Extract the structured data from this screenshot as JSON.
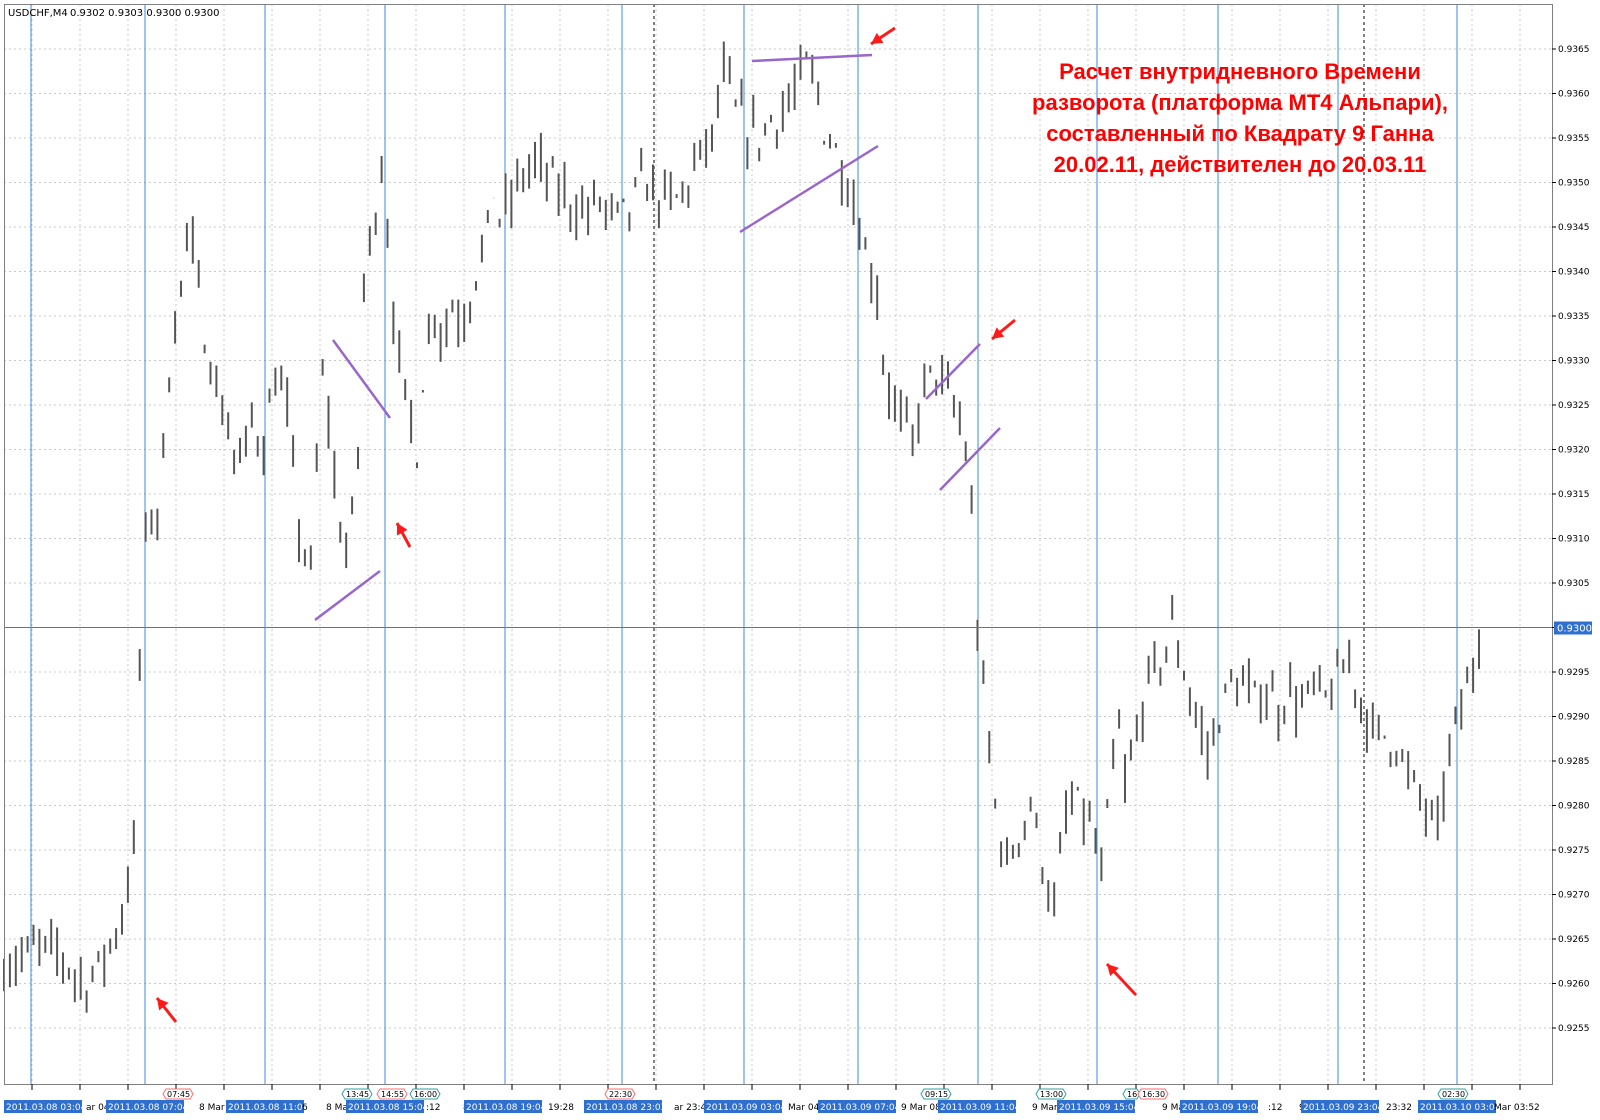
{
  "header": {
    "symbol": "USDCHF,M4",
    "ohlc": "0.9302 0.9303 0.9300 0.9300"
  },
  "annotation": {
    "lines": [
      "Расчет внутридневного Времени",
      "разворота (платформа МТ4 Альпари),",
      "составленный по Квадрату 9 Ганна",
      "20.02.11, действителен до 20.03.11"
    ],
    "color": "#ff0000"
  },
  "colors": {
    "background": "#ffffff",
    "grid": "#c8c8c8",
    "candle": "#555555",
    "vline": "#3a8ee6",
    "trendline": "#9966cc",
    "arrow": "#ff1a1a",
    "current_price": "#6b6bb4",
    "price_tag": "#2f6fcf"
  },
  "chart_data": {
    "type": "bar",
    "title": "USDCHF,M4",
    "ylim": [
      0.925,
      0.93675
    ],
    "y_ticks": [
      "0.9365",
      "0.9360",
      "0.9355",
      "0.9350",
      "0.9345",
      "0.9340",
      "0.9335",
      "0.9330",
      "0.9325",
      "0.9320",
      "0.9315",
      "0.9310",
      "0.9305",
      "0.9300",
      "0.9295",
      "0.9290",
      "0.9285",
      "0.9280",
      "0.9275",
      "0.9270",
      "0.9265",
      "0.9260",
      "0.9255"
    ],
    "current_price": {
      "value": 0.93,
      "label": "0.9300"
    },
    "grid": true,
    "x_axis_labels": [
      "2011.03.08 03:04",
      "ar 04",
      "2011.03.08 07:04",
      "8 Mar",
      "2011.03.08 11:04",
      "6",
      "8 Ma",
      "2011.03.08 15:04",
      ":12",
      "8 M",
      "2011.03.08 19:04",
      "19:28",
      "2011.03.08 23:03",
      "ar 23:44",
      "2011.03.09 03:04",
      "Mar 04:0",
      "2011.03.09 07:04",
      "9 Mar 08",
      "2011.03.09 11:04",
      "9 Mar",
      "2011.03.09 15:04",
      "9 Ma",
      "2011.03.09 19:04",
      ":12",
      "9 M",
      "2011.03.09 23:04",
      "23:32",
      "2011.03.10 03:04",
      "Mar 03:52"
    ],
    "time_markers": [
      "07:45",
      "13:45",
      "14:55",
      "16:00",
      "22:30",
      "09:15",
      "13:00",
      "16",
      "16:30",
      "02:30"
    ],
    "price_path": [
      [
        0,
        0.9262
      ],
      [
        1.5,
        0.9263
      ],
      [
        3,
        0.9264
      ],
      [
        5,
        0.9263
      ],
      [
        6,
        0.9261
      ],
      [
        7.2,
        0.926
      ],
      [
        8.5,
        0.9263
      ],
      [
        9.5,
        0.9266
      ],
      [
        10,
        0.9268
      ],
      [
        11,
        0.9275
      ],
      [
        11.3,
        0.929
      ],
      [
        11.8,
        0.9305
      ],
      [
        12.2,
        0.9315
      ],
      [
        12.8,
        0.931
      ],
      [
        13.5,
        0.932
      ],
      [
        14.2,
        0.9332
      ],
      [
        15,
        0.9338
      ],
      [
        15.6,
        0.9346
      ],
      [
        16.2,
        0.934
      ],
      [
        17,
        0.9333
      ],
      [
        18,
        0.9327
      ],
      [
        19,
        0.9322
      ],
      [
        20,
        0.9318
      ],
      [
        21,
        0.9323
      ],
      [
        22,
        0.9321
      ],
      [
        23,
        0.9328
      ],
      [
        24,
        0.9324
      ],
      [
        25,
        0.9311
      ],
      [
        26,
        0.9306
      ],
      [
        26.5,
        0.9318
      ],
      [
        27,
        0.9328
      ],
      [
        27.6,
        0.9323
      ],
      [
        28.3,
        0.9312
      ],
      [
        29,
        0.9309
      ],
      [
        29.6,
        0.9312
      ],
      [
        30,
        0.932
      ],
      [
        30.5,
        0.9338
      ],
      [
        31.2,
        0.9345
      ],
      [
        32,
        0.9352
      ],
      [
        32.5,
        0.9345
      ],
      [
        33,
        0.9336
      ],
      [
        33.5,
        0.9329
      ],
      [
        34,
        0.9326
      ],
      [
        35,
        0.932
      ],
      [
        35.5,
        0.9328
      ],
      [
        36.5,
        0.9336
      ],
      [
        37.2,
        0.9333
      ],
      [
        38,
        0.9336
      ],
      [
        39,
        0.9335
      ],
      [
        40,
        0.934
      ],
      [
        40.8,
        0.9343
      ],
      [
        41.5,
        0.9349
      ],
      [
        42,
        0.9346
      ],
      [
        43,
        0.9348
      ],
      [
        44,
        0.9351
      ],
      [
        45,
        0.9352
      ],
      [
        46,
        0.9351
      ],
      [
        47,
        0.9349
      ],
      [
        48,
        0.9348
      ],
      [
        49,
        0.9347
      ],
      [
        49.5,
        0.9346
      ],
      [
        50,
        0.9348
      ],
      [
        51,
        0.9347
      ],
      [
        52,
        0.9346
      ],
      [
        53,
        0.9347
      ],
      [
        54,
        0.935
      ],
      [
        55,
        0.9349
      ],
      [
        56,
        0.9348
      ],
      [
        57,
        0.9348
      ],
      [
        58,
        0.935
      ],
      [
        59,
        0.9353
      ],
      [
        60,
        0.9355
      ],
      [
        61,
        0.9362
      ],
      [
        62,
        0.9358
      ],
      [
        63,
        0.9356
      ],
      [
        64,
        0.9355
      ],
      [
        65,
        0.9357
      ],
      [
        66,
        0.9358
      ],
      [
        67,
        0.936
      ],
      [
        68,
        0.9363
      ],
      [
        69,
        0.936
      ],
      [
        69.5,
        0.9356
      ],
      [
        70,
        0.9355
      ],
      [
        71,
        0.9352
      ],
      [
        72,
        0.9348
      ],
      [
        73,
        0.9342
      ],
      [
        74,
        0.9338
      ],
      [
        74.5,
        0.933
      ],
      [
        75,
        0.9327
      ],
      [
        76,
        0.9323
      ],
      [
        77,
        0.9321
      ],
      [
        78,
        0.9327
      ],
      [
        79,
        0.9329
      ],
      [
        80,
        0.9326
      ],
      [
        81,
        0.9323
      ],
      [
        81.8,
        0.9318
      ],
      [
        82.5,
        0.93
      ],
      [
        83.2,
        0.929
      ],
      [
        84,
        0.928
      ],
      [
        85,
        0.9273
      ],
      [
        86,
        0.9277
      ],
      [
        87,
        0.928
      ],
      [
        88,
        0.9274
      ],
      [
        89,
        0.9268
      ],
      [
        90,
        0.9279
      ],
      [
        91,
        0.928
      ],
      [
        92,
        0.9278
      ],
      [
        93,
        0.9272
      ],
      [
        93.5,
        0.9278
      ],
      [
        94,
        0.9285
      ],
      [
        94.5,
        0.9288
      ],
      [
        95,
        0.9282
      ],
      [
        96,
        0.9288
      ],
      [
        97,
        0.9294
      ],
      [
        98,
        0.9296
      ],
      [
        99,
        0.93
      ],
      [
        100,
        0.9295
      ],
      [
        101,
        0.929
      ],
      [
        102,
        0.9286
      ],
      [
        103,
        0.929
      ],
      [
        104,
        0.9294
      ],
      [
        105,
        0.9293
      ],
      [
        106,
        0.9292
      ],
      [
        107,
        0.9293
      ],
      [
        108,
        0.9291
      ],
      [
        109,
        0.9293
      ],
      [
        110,
        0.9291
      ],
      [
        111,
        0.9293
      ],
      [
        112,
        0.9292
      ],
      [
        113,
        0.9294
      ],
      [
        114,
        0.9296
      ],
      [
        115,
        0.9292
      ],
      [
        116,
        0.9288
      ],
      [
        117,
        0.9288
      ],
      [
        118,
        0.9287
      ],
      [
        119,
        0.9283
      ],
      [
        120,
        0.9281
      ],
      [
        121,
        0.9278
      ],
      [
        121.5,
        0.9277
      ],
      [
        122,
        0.9282
      ],
      [
        123,
        0.9289
      ],
      [
        124,
        0.9293
      ],
      [
        124.7,
        0.9296
      ],
      [
        125,
        0.93
      ]
    ]
  }
}
